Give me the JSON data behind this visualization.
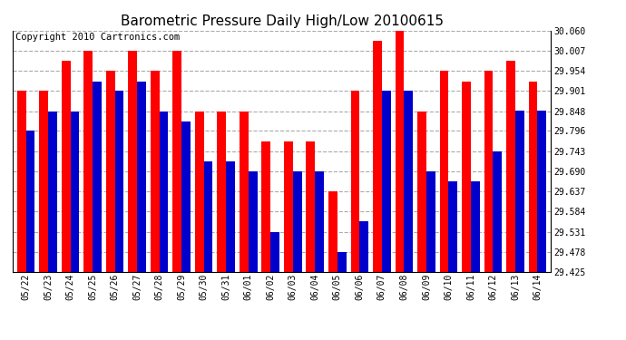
{
  "title": "Barometric Pressure Daily High/Low 20100615",
  "copyright": "Copyright 2010 Cartronics.com",
  "dates": [
    "05/22",
    "05/23",
    "05/24",
    "05/25",
    "05/26",
    "05/27",
    "05/28",
    "05/29",
    "05/30",
    "05/31",
    "06/01",
    "06/02",
    "06/03",
    "06/04",
    "06/05",
    "06/06",
    "06/07",
    "06/08",
    "06/09",
    "06/10",
    "06/11",
    "06/12",
    "06/13",
    "06/14"
  ],
  "highs": [
    29.901,
    29.901,
    29.98,
    30.007,
    29.954,
    30.007,
    29.954,
    30.007,
    29.848,
    29.848,
    29.848,
    29.769,
    29.769,
    29.769,
    29.637,
    29.901,
    30.033,
    30.06,
    29.848,
    29.954,
    29.927,
    29.954,
    29.98,
    29.927
  ],
  "lows": [
    29.796,
    29.848,
    29.848,
    29.927,
    29.901,
    29.927,
    29.848,
    29.822,
    29.716,
    29.716,
    29.69,
    29.531,
    29.69,
    29.69,
    29.478,
    29.558,
    29.901,
    29.901,
    29.69,
    29.663,
    29.663,
    29.743,
    29.849,
    29.849
  ],
  "high_color": "#ff0000",
  "low_color": "#0000cc",
  "bg_color": "#ffffff",
  "grid_color": "#aaaaaa",
  "ymin": 29.425,
  "ymax": 30.06,
  "yticks": [
    29.425,
    29.478,
    29.531,
    29.584,
    29.637,
    29.69,
    29.743,
    29.796,
    29.848,
    29.901,
    29.954,
    30.007,
    30.06
  ],
  "title_fontsize": 11,
  "copyright_fontsize": 7.5
}
